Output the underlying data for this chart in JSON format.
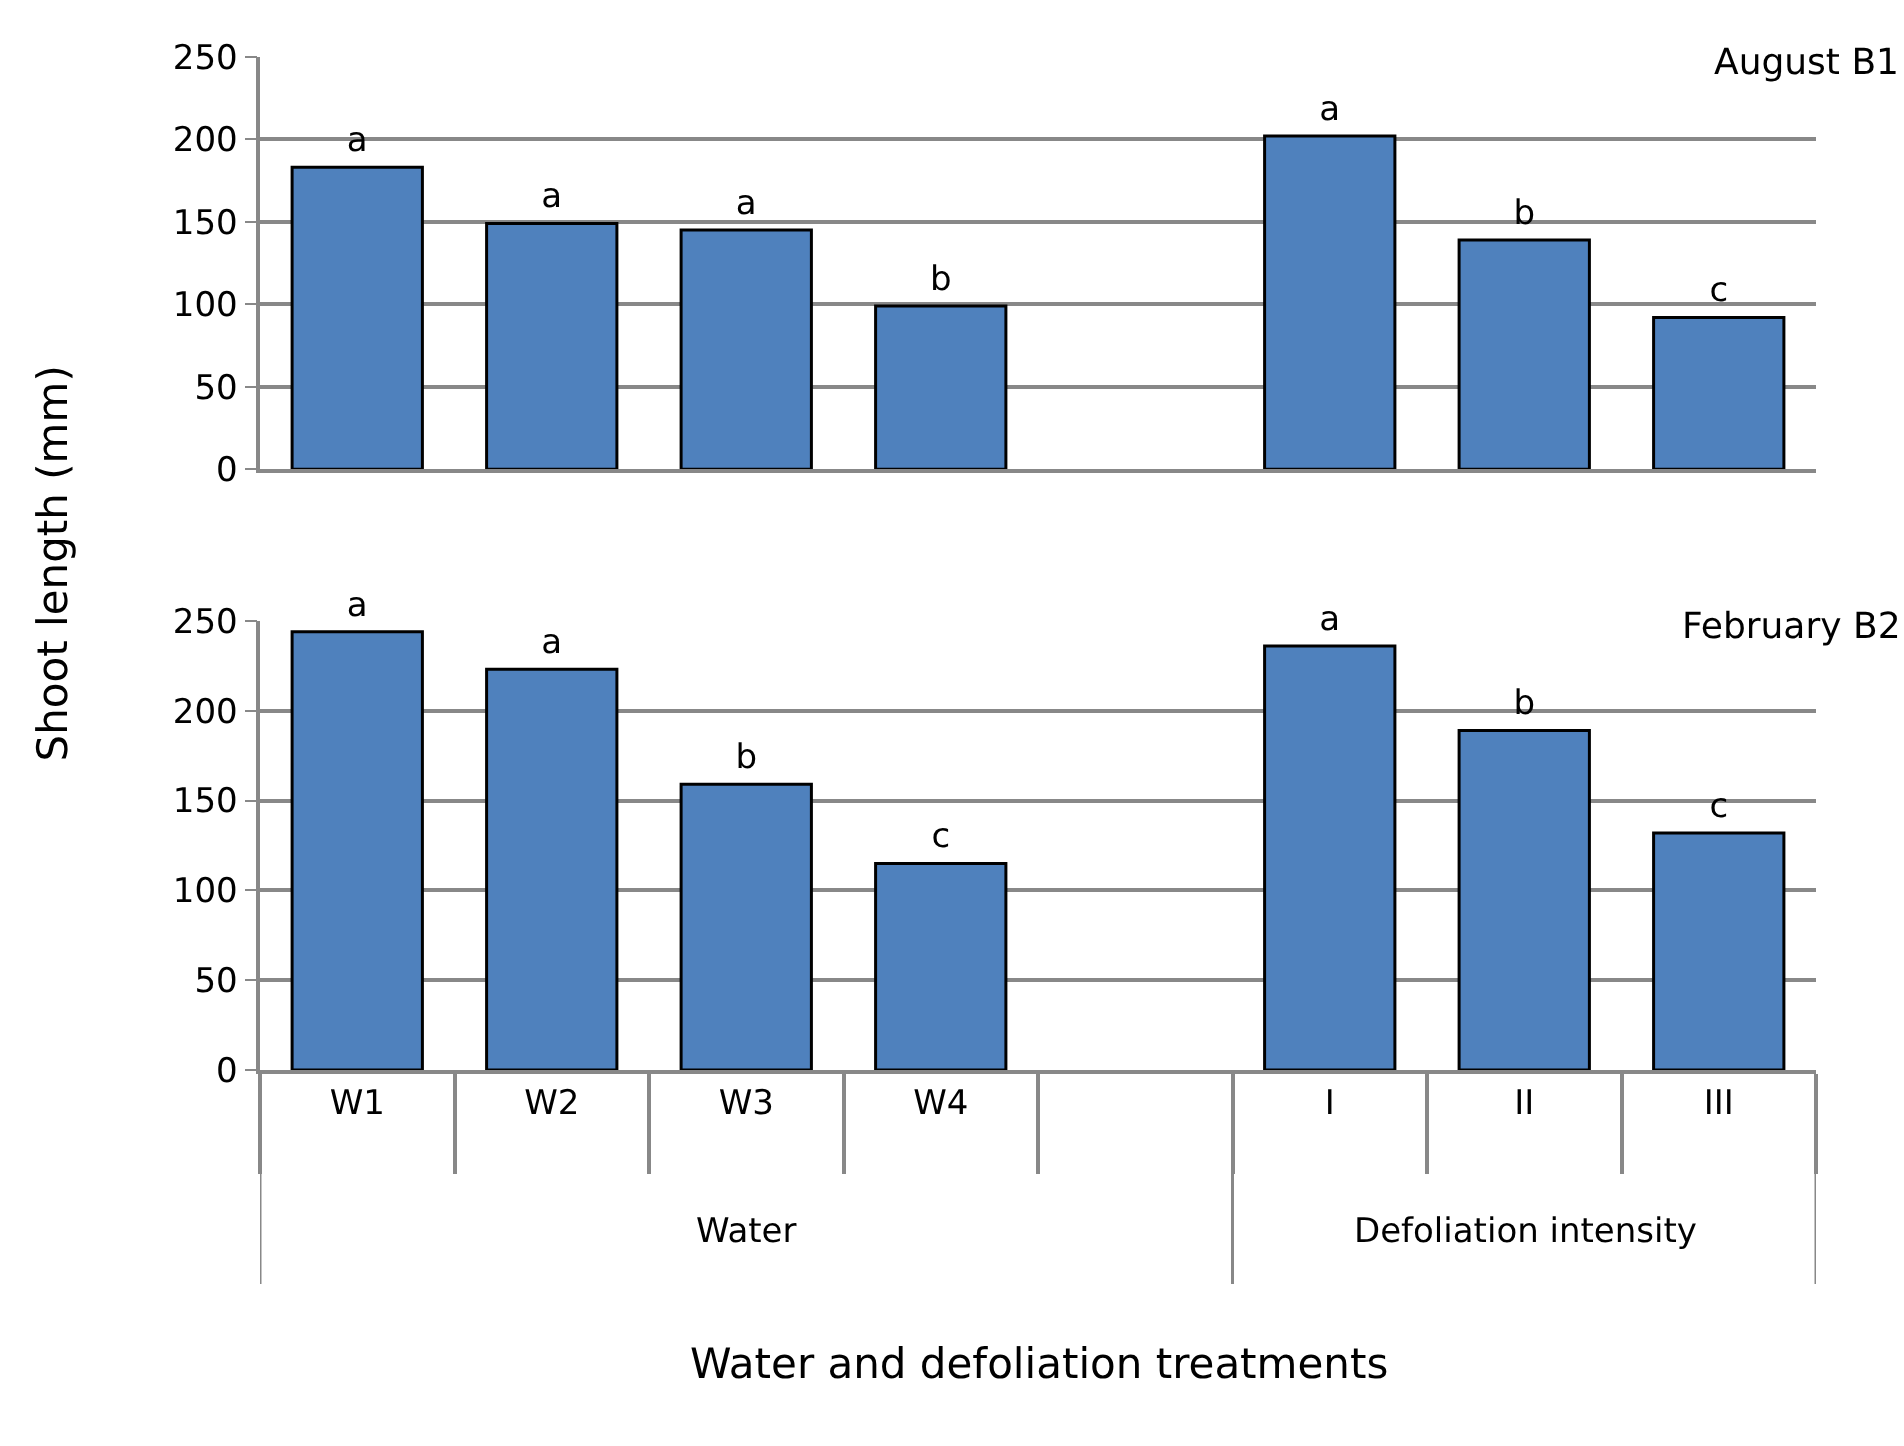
{
  "chart_data": [
    {
      "type": "bar",
      "title": "August B1",
      "ylabel": "Shoot length (mm)",
      "categories": [
        null,
        null,
        null,
        null,
        null,
        null,
        null,
        null
      ],
      "values": [
        183,
        149,
        145,
        99,
        null,
        202,
        139,
        92
      ],
      "value_labels": [
        "a",
        "a",
        "a",
        "b",
        null,
        "a",
        "b",
        "c"
      ],
      "color": "#4f81bd",
      "ylim": [
        0,
        250
      ],
      "yticks": [
        0,
        50,
        100,
        150,
        200,
        250
      ],
      "grid": "y",
      "tick_labels": "y"
    },
    {
      "type": "bar",
      "title": "February B2",
      "xlabel": "Water and defoliation treatments",
      "categories": [
        "W1",
        "W2",
        "W3",
        "W4",
        null,
        "I",
        "II",
        "III"
      ],
      "values": [
        244,
        223,
        159,
        115,
        null,
        236,
        189,
        132
      ],
      "value_labels": [
        "a",
        "a",
        "b",
        "c",
        null,
        "a",
        "b",
        "c"
      ],
      "color": "#4f81bd",
      "ylim": [
        0,
        250
      ],
      "yticks": [
        0,
        50,
        100,
        150,
        200,
        250
      ],
      "grid": "y",
      "annotations": [
        "Water",
        "Defoliation intensity"
      ]
    }
  ]
}
